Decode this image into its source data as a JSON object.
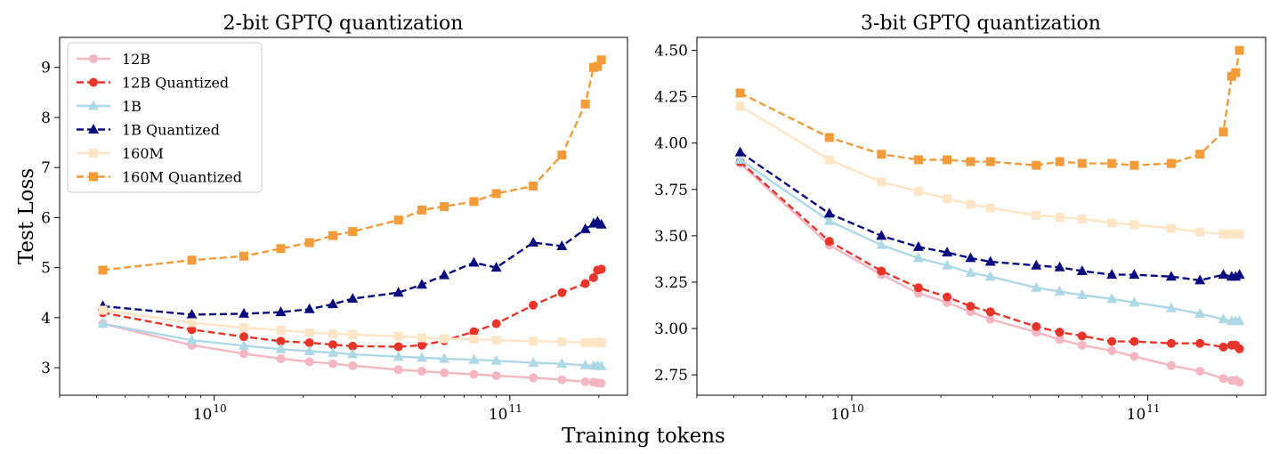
{
  "figure": {
    "xlabel": "Training tokens",
    "ylabel": "Test Loss"
  },
  "legend": [
    {
      "label": "12B",
      "color": "#f4b6c2",
      "marker": "circle",
      "dash": false
    },
    {
      "label": "12B Quantized",
      "color": "#e8352a",
      "marker": "circle",
      "dash": true
    },
    {
      "label": "1B",
      "color": "#add8e6",
      "marker": "triangle",
      "dash": false
    },
    {
      "label": "1B Quantized",
      "color": "#0b0b80",
      "marker": "triangle",
      "dash": true
    },
    {
      "label": "160M",
      "color": "#fde5c6",
      "marker": "square",
      "dash": false
    },
    {
      "label": "160M Quantized",
      "color": "#f29b3a",
      "marker": "square",
      "dash": true
    }
  ],
  "chart_data": [
    {
      "type": "line",
      "title": "2-bit GPTQ quantization",
      "xscale": "log",
      "xlim": [
        3000000000.0,
        250000000000.0
      ],
      "ylim": [
        2.45,
        9.6
      ],
      "yticks": [
        3,
        4,
        5,
        6,
        7,
        8,
        9
      ],
      "xticks": [
        {
          "value": 10000000000.0,
          "label": "10",
          "exp": "10"
        },
        {
          "value": 100000000000.0,
          "label": "10",
          "exp": "11"
        }
      ],
      "x": [
        4200000000.0,
        8400000000.0,
        12600000000.0,
        16800000000.0,
        21000000000.0,
        25200000000.0,
        29400000000.0,
        42000000000.0,
        50400000000.0,
        60000000000.0,
        75600000000.0,
        90000000000.0,
        120000000000.0,
        150000000000.0,
        180000000000.0,
        192000000000.0,
        198000000000.0,
        204000000000.0
      ],
      "series": [
        {
          "name": "12B",
          "values": [
            3.88,
            3.45,
            3.28,
            3.18,
            3.12,
            3.08,
            3.04,
            2.96,
            2.93,
            2.9,
            2.87,
            2.84,
            2.8,
            2.76,
            2.72,
            2.71,
            2.7,
            2.69
          ]
        },
        {
          "name": "12B Quantized",
          "values": [
            4.1,
            3.76,
            3.62,
            3.53,
            3.5,
            3.46,
            3.43,
            3.42,
            3.45,
            3.54,
            3.72,
            3.88,
            4.25,
            4.5,
            4.68,
            4.8,
            4.95,
            4.97
          ]
        },
        {
          "name": "1B",
          "values": [
            3.88,
            3.55,
            3.44,
            3.37,
            3.33,
            3.3,
            3.27,
            3.22,
            3.2,
            3.18,
            3.16,
            3.14,
            3.1,
            3.08,
            3.05,
            3.04,
            3.04,
            3.03
          ]
        },
        {
          "name": "1B Quantized",
          "values": [
            4.23,
            4.06,
            4.08,
            4.11,
            4.17,
            4.27,
            4.38,
            4.5,
            4.66,
            4.85,
            5.1,
            5.0,
            5.5,
            5.43,
            5.77,
            5.88,
            5.92,
            5.86
          ]
        },
        {
          "name": "160M",
          "values": [
            4.15,
            3.9,
            3.8,
            3.75,
            3.7,
            3.68,
            3.66,
            3.63,
            3.6,
            3.58,
            3.57,
            3.55,
            3.53,
            3.52,
            3.5,
            3.5,
            3.51,
            3.5
          ]
        },
        {
          "name": "160M Quantized",
          "values": [
            4.95,
            5.15,
            5.23,
            5.38,
            5.5,
            5.64,
            5.72,
            5.95,
            6.15,
            6.22,
            6.32,
            6.48,
            6.63,
            7.25,
            8.27,
            9.0,
            9.02,
            9.15
          ]
        }
      ]
    },
    {
      "type": "line",
      "title": "3-bit GPTQ quantization",
      "xscale": "log",
      "xlim": [
        3000000000.0,
        250000000000.0
      ],
      "ylim": [
        2.64,
        4.57
      ],
      "yticks": [
        2.75,
        3.0,
        3.25,
        3.5,
        3.75,
        4.0,
        4.25,
        4.5
      ],
      "yticklabels": [
        "2.75",
        "3.00",
        "3.25",
        "3.50",
        "3.75",
        "4.00",
        "4.25",
        "4.50"
      ],
      "xticks": [
        {
          "value": 10000000000.0,
          "label": "10",
          "exp": "10"
        },
        {
          "value": 100000000000.0,
          "label": "10",
          "exp": "11"
        }
      ],
      "x": [
        4200000000.0,
        8400000000.0,
        12600000000.0,
        16800000000.0,
        21000000000.0,
        25200000000.0,
        29400000000.0,
        42000000000.0,
        50400000000.0,
        60000000000.0,
        75600000000.0,
        90000000000.0,
        120000000000.0,
        150000000000.0,
        180000000000.0,
        192000000000.0,
        198000000000.0,
        204000000000.0
      ],
      "series": [
        {
          "name": "12B",
          "values": [
            3.89,
            3.45,
            3.29,
            3.19,
            3.14,
            3.09,
            3.05,
            2.98,
            2.94,
            2.91,
            2.88,
            2.85,
            2.8,
            2.77,
            2.73,
            2.72,
            2.72,
            2.71
          ]
        },
        {
          "name": "12B Quantized",
          "values": [
            3.9,
            3.47,
            3.31,
            3.22,
            3.17,
            3.12,
            3.09,
            3.01,
            2.98,
            2.96,
            2.93,
            2.93,
            2.92,
            2.92,
            2.9,
            2.91,
            2.91,
            2.89
          ]
        },
        {
          "name": "1B",
          "values": [
            3.91,
            3.58,
            3.45,
            3.38,
            3.34,
            3.3,
            3.28,
            3.22,
            3.2,
            3.18,
            3.16,
            3.14,
            3.11,
            3.08,
            3.05,
            3.04,
            3.04,
            3.04
          ]
        },
        {
          "name": "1B Quantized",
          "values": [
            3.95,
            3.62,
            3.5,
            3.44,
            3.41,
            3.38,
            3.36,
            3.34,
            3.33,
            3.31,
            3.29,
            3.29,
            3.28,
            3.26,
            3.29,
            3.28,
            3.28,
            3.29
          ]
        },
        {
          "name": "160M",
          "values": [
            4.2,
            3.91,
            3.79,
            3.74,
            3.7,
            3.67,
            3.65,
            3.61,
            3.6,
            3.59,
            3.57,
            3.56,
            3.54,
            3.52,
            3.51,
            3.51,
            3.51,
            3.51
          ]
        },
        {
          "name": "160M Quantized",
          "values": [
            4.27,
            4.03,
            3.94,
            3.91,
            3.91,
            3.9,
            3.9,
            3.88,
            3.9,
            3.89,
            3.89,
            3.88,
            3.89,
            3.94,
            4.06,
            4.36,
            4.38,
            4.5
          ]
        }
      ]
    }
  ]
}
